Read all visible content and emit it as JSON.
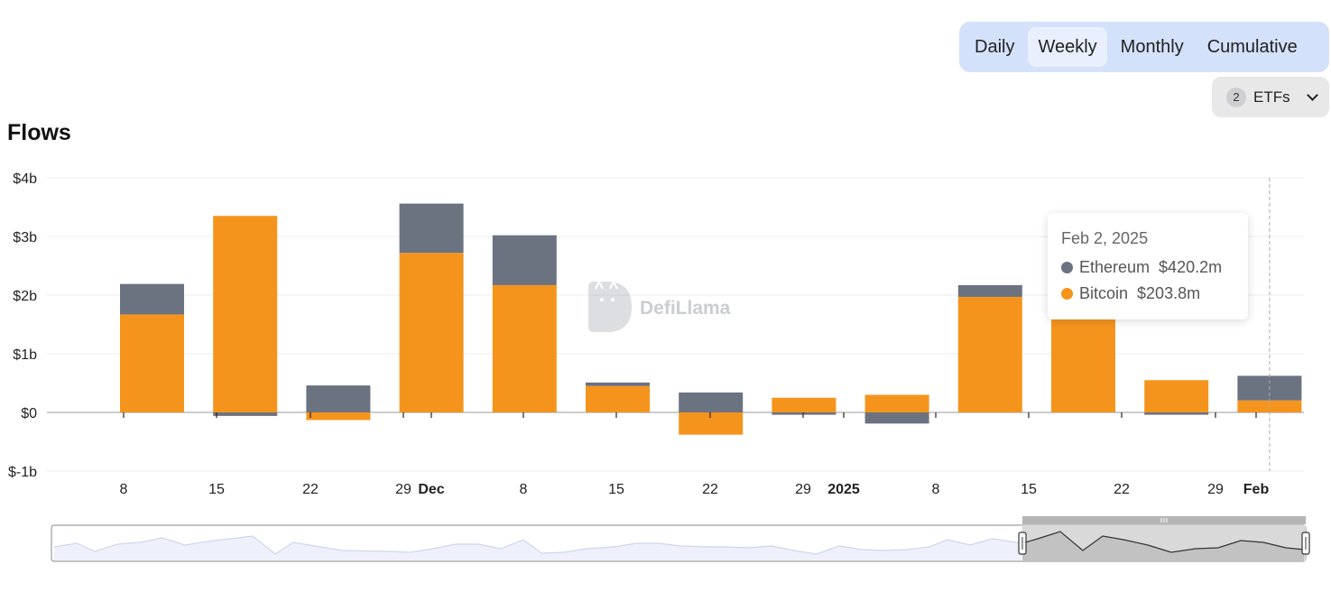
{
  "tabs": [
    {
      "label": "Daily",
      "active": false
    },
    {
      "label": "Weekly",
      "active": true
    },
    {
      "label": "Monthly",
      "active": false
    },
    {
      "label": "Cumulative",
      "active": false
    }
  ],
  "etf_filter": {
    "count": "2",
    "label": "ETFs",
    "icon": "chevron-down-icon"
  },
  "section_title": "Flows",
  "watermark": "DefiLlama",
  "colors": {
    "ethereum": "#6b7280",
    "bitcoin": "#f5941d",
    "tab_bg": "#d4e1fb",
    "tab_active": "#e9effc"
  },
  "tooltip": {
    "date": "Feb 2, 2025",
    "rows": [
      {
        "name": "Ethereum",
        "value": "$420.2m",
        "color": "#6b7280"
      },
      {
        "name": "Bitcoin",
        "value": "$203.8m",
        "color": "#f5941d"
      }
    ]
  },
  "chart_data": {
    "type": "bar",
    "stacked": true,
    "title": "Flows",
    "xlabel": "",
    "ylabel": "",
    "ylim": [
      -1,
      4
    ],
    "y_unit": "billions USD",
    "y_ticks": [
      "$-1b",
      "$0",
      "$1b",
      "$2b",
      "$3b",
      "$4b"
    ],
    "x_ticks": [
      {
        "label": "8",
        "bold": false
      },
      {
        "label": "15",
        "bold": false
      },
      {
        "label": "22",
        "bold": false
      },
      {
        "label": "29",
        "bold": false
      },
      {
        "label": "Dec",
        "bold": true
      },
      {
        "label": "8",
        "bold": false
      },
      {
        "label": "15",
        "bold": false
      },
      {
        "label": "22",
        "bold": false
      },
      {
        "label": "29",
        "bold": false
      },
      {
        "label": "2025",
        "bold": true
      },
      {
        "label": "8",
        "bold": false
      },
      {
        "label": "15",
        "bold": false
      },
      {
        "label": "22",
        "bold": false
      },
      {
        "label": "29",
        "bold": false
      },
      {
        "label": "Feb",
        "bold": true
      }
    ],
    "legend": "none",
    "grid": true,
    "series": [
      {
        "name": "Bitcoin",
        "color": "#f5941d",
        "values": [
          1.67,
          3.35,
          -0.13,
          2.72,
          2.17,
          0.45,
          -0.38,
          0.25,
          0.3,
          1.97,
          1.77,
          0.55,
          0.204
        ]
      },
      {
        "name": "Ethereum",
        "color": "#6b7280",
        "values": [
          0.52,
          -0.06,
          0.46,
          0.84,
          0.85,
          0.06,
          0.34,
          -0.04,
          -0.19,
          0.2,
          0.1,
          -0.04,
          0.42
        ]
      }
    ],
    "hover_index": 12
  }
}
